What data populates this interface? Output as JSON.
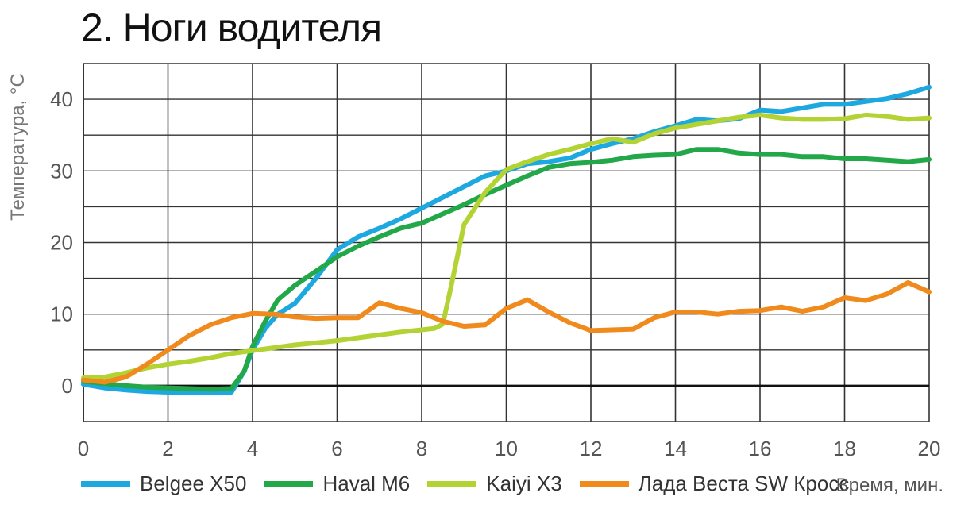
{
  "chart_data": {
    "type": "line",
    "title": "2. Ноги водителя",
    "ylabel": "Температура, °С",
    "xlabel": "Время, мин.",
    "xlim": [
      0,
      20
    ],
    "ylim": [
      -5,
      45
    ],
    "x_ticks": [
      0,
      2,
      4,
      6,
      8,
      10,
      12,
      14,
      16,
      18,
      20
    ],
    "y_ticks": [
      0,
      10,
      20,
      30,
      40
    ],
    "grid": true,
    "legend_position": "bottom",
    "series": [
      {
        "name": "Belgee X50",
        "color": "#1EA8E0",
        "x": [
          0,
          0.5,
          1,
          1.5,
          2,
          2.5,
          3,
          3.5,
          3.8,
          4,
          4.3,
          4.6,
          5,
          5.5,
          6,
          6.5,
          7,
          7.5,
          8,
          8.5,
          9,
          9.5,
          10,
          10.5,
          11,
          11.5,
          12,
          12.5,
          13,
          13.5,
          14,
          14.5,
          15,
          15.5,
          16,
          16.5,
          17,
          17.5,
          18,
          18.5,
          19,
          19.5,
          20
        ],
        "y": [
          0.2,
          -0.3,
          -0.6,
          -0.8,
          -0.9,
          -1,
          -1,
          -0.9,
          2,
          5,
          8,
          10,
          11.5,
          15,
          19,
          20.8,
          22,
          23.3,
          24.8,
          26.3,
          27.8,
          29.3,
          30,
          31,
          31.3,
          31.8,
          33,
          33.8,
          34.5,
          35.5,
          36.3,
          37.2,
          37,
          37.3,
          38.5,
          38.3,
          38.8,
          39.3,
          39.3,
          39.7,
          40.1,
          40.8,
          41.7
        ]
      },
      {
        "name": "Haval M6",
        "color": "#23A849",
        "x": [
          0,
          0.5,
          1,
          1.5,
          2,
          2.5,
          3,
          3.5,
          3.8,
          4,
          4.3,
          4.6,
          5,
          5.5,
          6,
          6.5,
          7,
          7.5,
          8,
          8.5,
          9,
          9.5,
          10,
          10.5,
          11,
          11.5,
          12,
          12.5,
          13,
          13.5,
          14,
          14.5,
          15,
          15.5,
          16,
          16.5,
          17,
          17.5,
          18,
          18.5,
          19,
          19.5,
          20
        ],
        "y": [
          0.6,
          0.3,
          0,
          -0.2,
          -0.3,
          -0.4,
          -0.5,
          -0.4,
          2,
          5.5,
          9,
          12,
          14,
          16,
          18,
          19.5,
          20.8,
          22,
          22.7,
          24,
          25.3,
          26.7,
          28,
          29.3,
          30.5,
          31,
          31.2,
          31.5,
          32,
          32.2,
          32.3,
          33,
          33,
          32.5,
          32.3,
          32.3,
          32,
          32,
          31.7,
          31.7,
          31.5,
          31.3,
          31.6
        ]
      },
      {
        "name": "Kaiyi X3",
        "color": "#B3D335",
        "x": [
          0,
          0.5,
          1,
          1.5,
          2,
          2.5,
          3,
          3.5,
          4,
          4.5,
          5,
          5.5,
          6,
          6.5,
          7,
          7.5,
          8,
          8.3,
          8.5,
          8.7,
          9,
          9.5,
          10,
          10.5,
          11,
          11.5,
          12,
          12.5,
          13,
          13.5,
          14,
          14.5,
          15,
          15.5,
          16,
          16.5,
          17,
          17.5,
          18,
          18.5,
          19,
          19.5,
          20
        ],
        "y": [
          1.1,
          1.2,
          1.8,
          2.5,
          3,
          3.4,
          3.9,
          4.5,
          4.9,
          5.3,
          5.7,
          6,
          6.3,
          6.7,
          7.1,
          7.5,
          7.8,
          8,
          8.6,
          14,
          22.5,
          27,
          30.2,
          31.3,
          32.3,
          33,
          33.8,
          34.5,
          34,
          35.2,
          36,
          36.5,
          37,
          37.5,
          37.8,
          37.4,
          37.2,
          37.2,
          37.3,
          37.8,
          37.6,
          37.2,
          37.4
        ]
      },
      {
        "name": "Лада Веста SW Кросс",
        "color": "#F08A1D",
        "x": [
          0,
          0.5,
          1,
          1.5,
          2,
          2.5,
          3,
          3.5,
          4,
          4.5,
          5,
          5.5,
          6,
          6.5,
          7,
          7.5,
          8,
          8.5,
          9,
          9.5,
          10,
          10.5,
          11,
          11.5,
          12,
          12.5,
          13,
          13.5,
          14,
          14.5,
          15,
          15.5,
          16,
          16.5,
          17,
          17.5,
          18,
          18.5,
          19,
          19.5,
          20
        ],
        "y": [
          0.8,
          0.5,
          1.2,
          3,
          5,
          7,
          8.5,
          9.5,
          10.1,
          10,
          9.6,
          9.4,
          9.5,
          9.5,
          11.6,
          10.8,
          10.2,
          9,
          8.3,
          8.5,
          10.8,
          12,
          10.3,
          8.8,
          7.7,
          7.8,
          7.9,
          9.5,
          10.3,
          10.3,
          10,
          10.4,
          10.5,
          11,
          10.4,
          11,
          12.3,
          11.9,
          12.8,
          14.4,
          13.1
        ]
      }
    ]
  }
}
